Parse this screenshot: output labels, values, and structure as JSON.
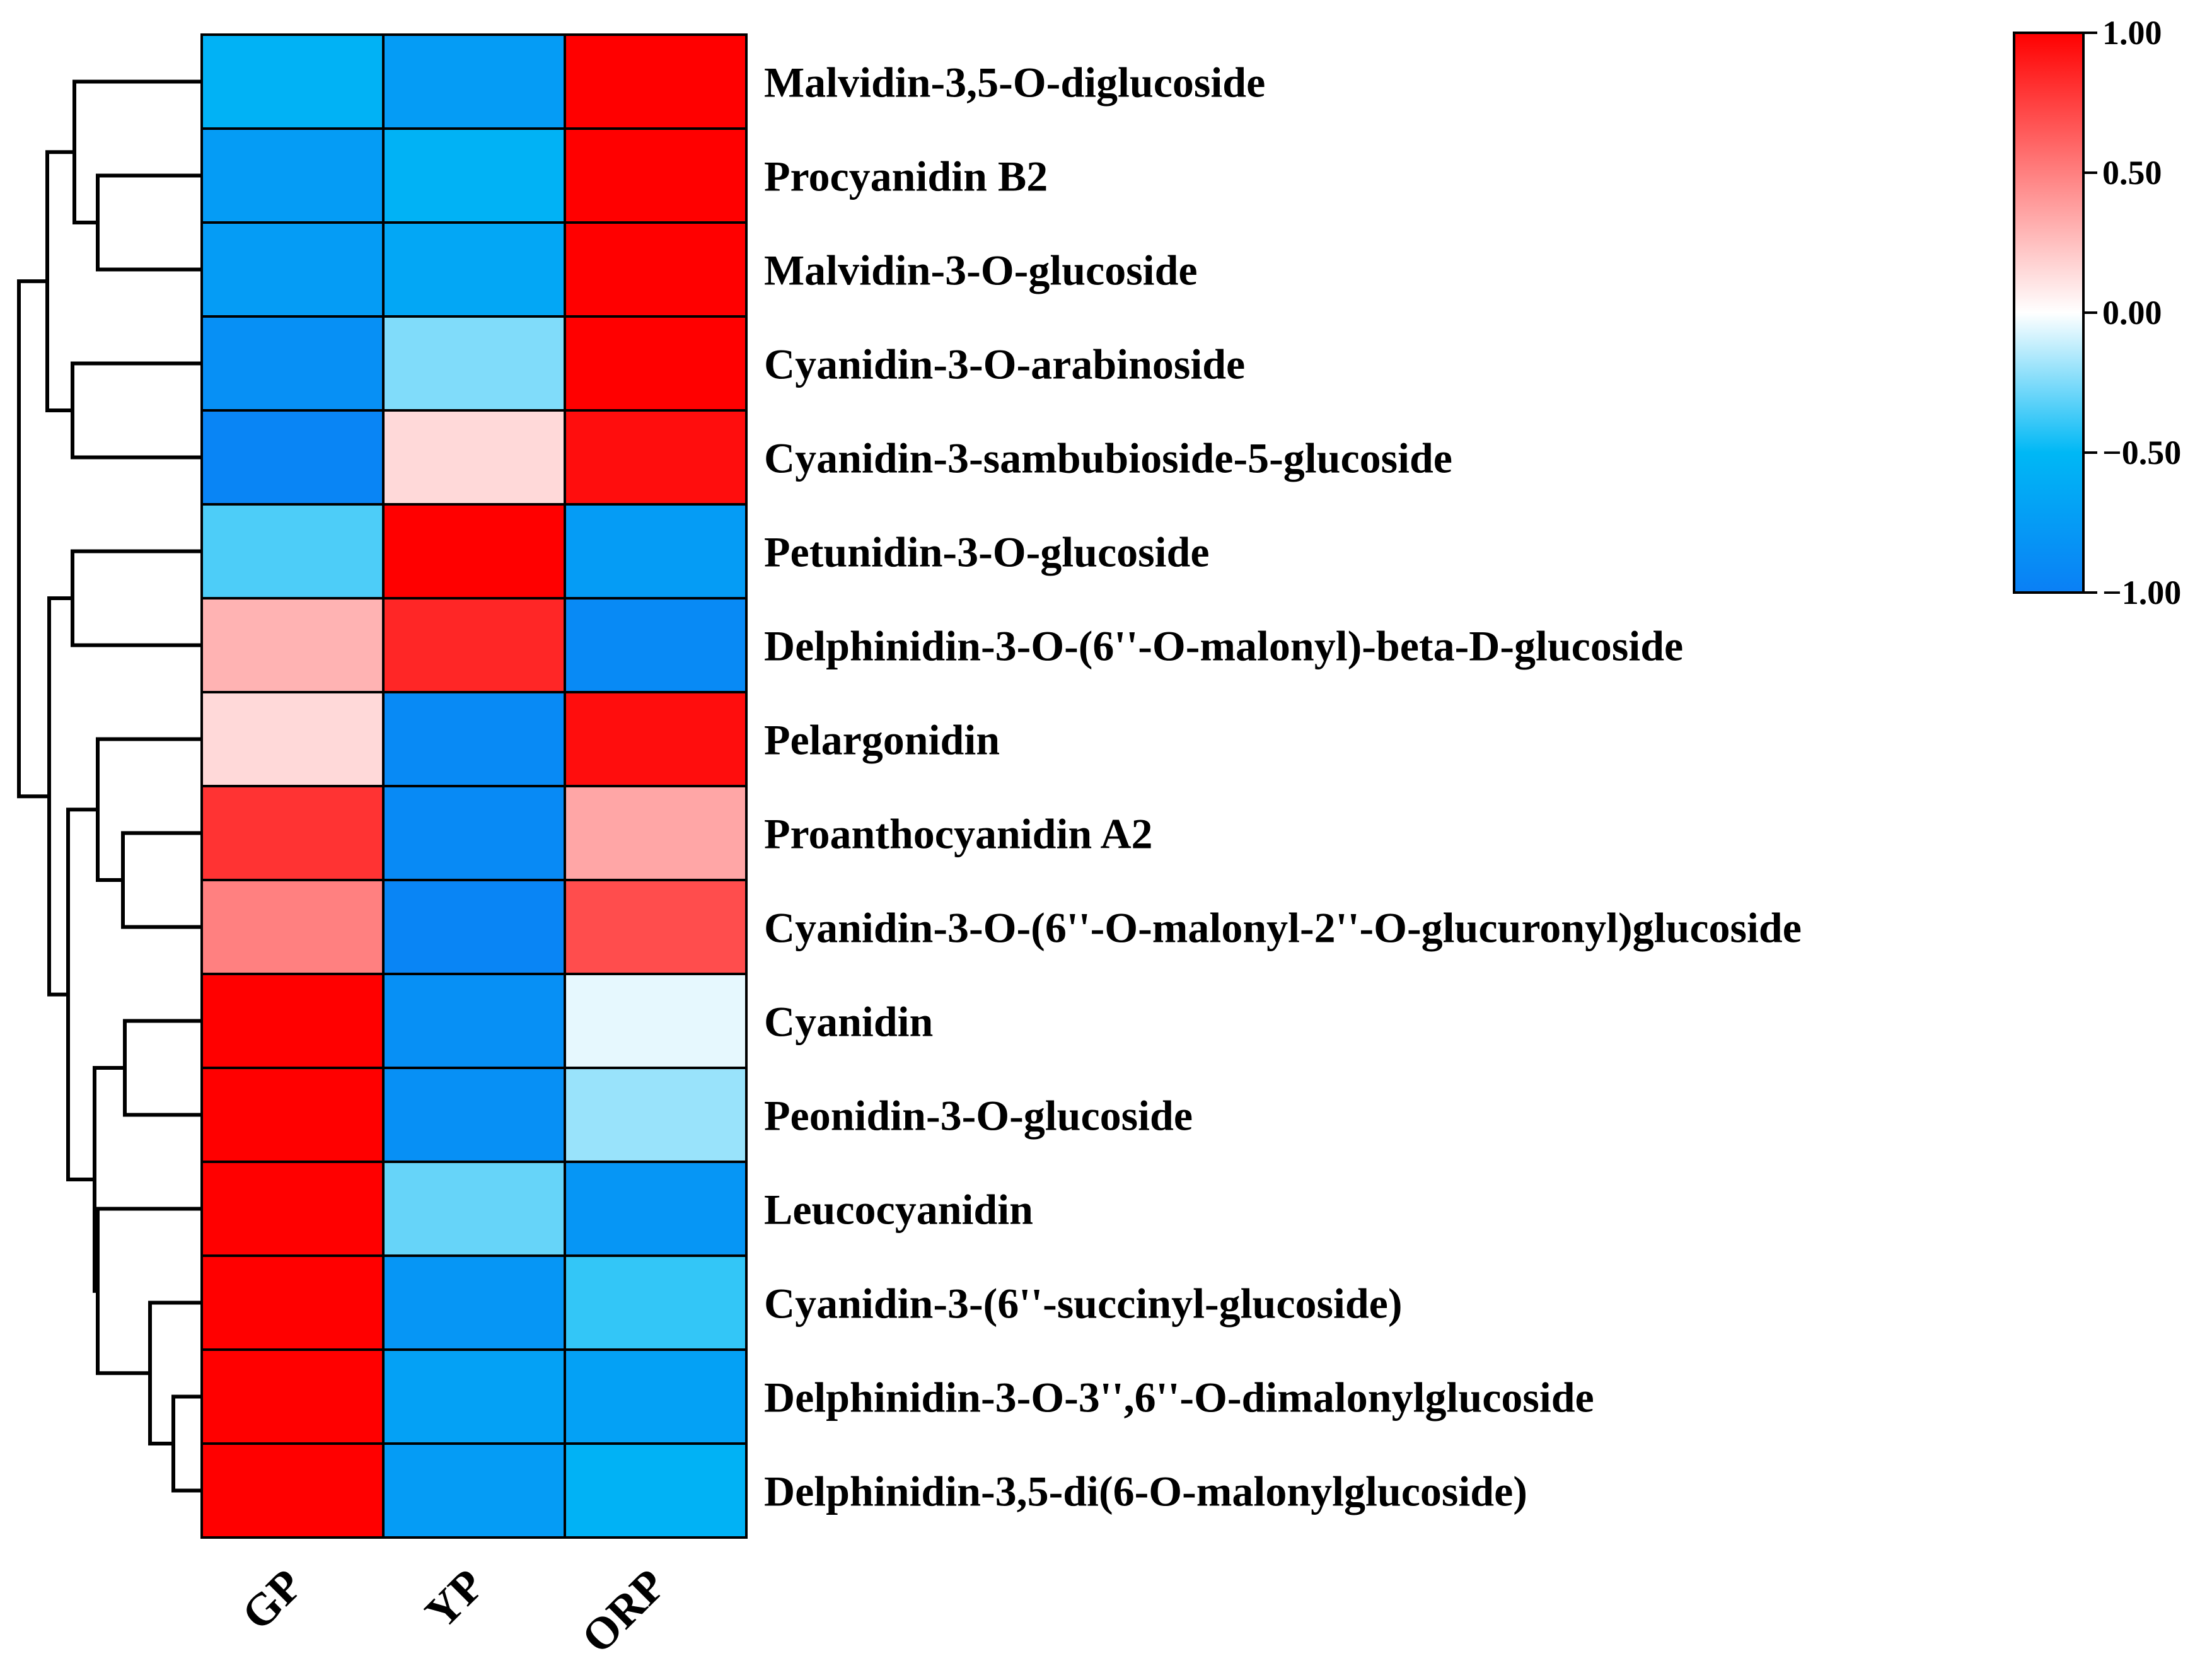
{
  "chart_data": {
    "type": "heatmap",
    "columns": [
      "GP",
      "YP",
      "ORP"
    ],
    "rows": [
      "Malvidin-3,5-O-diglucoside",
      "Procyanidin B2",
      "Malvidin-3-O-glucoside",
      "Cyanidin-3-O-arabinoside",
      "Cyanidin-3-sambubioside-5-glucoside",
      "Petunidin-3-O-glucoside",
      "Delphinidin-3-O-(6''-O-malonyl)-beta-D-glucoside",
      "Pelargonidin",
      "Proanthocyanidin A2",
      "Cyanidin-3-O-(6''-O-malonyl-2''-O-glucuronyl)glucoside",
      "Cyanidin",
      "Peonidin-3-O-glucoside",
      "Leucocyanidin",
      "Cyanidin-3-(6''-succinyl-glucoside)",
      "Delphinidin-3-O-3'',6''-O-dimalonylglucoside",
      "Delphinidin-3,5-di(6-O-malonylglucoside)"
    ],
    "values": [
      [
        -0.55,
        -0.75,
        1.0
      ],
      [
        -0.75,
        -0.55,
        1.0
      ],
      [
        -0.75,
        -0.65,
        1.0
      ],
      [
        -0.85,
        -0.25,
        1.0
      ],
      [
        -0.95,
        0.15,
        0.95
      ],
      [
        -0.35,
        1.0,
        -0.75
      ],
      [
        0.3,
        0.85,
        -0.9
      ],
      [
        0.15,
        -0.9,
        0.95
      ],
      [
        0.8,
        -0.9,
        0.35
      ],
      [
        0.5,
        -0.95,
        0.7
      ],
      [
        1.0,
        -0.85,
        -0.05
      ],
      [
        1.0,
        -0.85,
        -0.2
      ],
      [
        1.0,
        -0.3,
        -0.8
      ],
      [
        1.0,
        -0.8,
        -0.4
      ],
      [
        1.0,
        -0.7,
        -0.7
      ],
      [
        1.0,
        -0.75,
        -0.55
      ]
    ],
    "colorbar": {
      "min": -1.0,
      "max": 1.0,
      "ticks": [
        "1.00",
        "0.50",
        "0.00",
        "−0.50",
        "−1.00"
      ],
      "tick_values": [
        1.0,
        0.5,
        0.0,
        -0.5,
        -1.0
      ],
      "colors": {
        "low": "#0a7ff5",
        "mid_low": "#00b8f5",
        "mid": "#ffffff",
        "high": "#ff0000"
      },
      "position": "top-right"
    },
    "dendrogram": "left",
    "grid": false
  }
}
